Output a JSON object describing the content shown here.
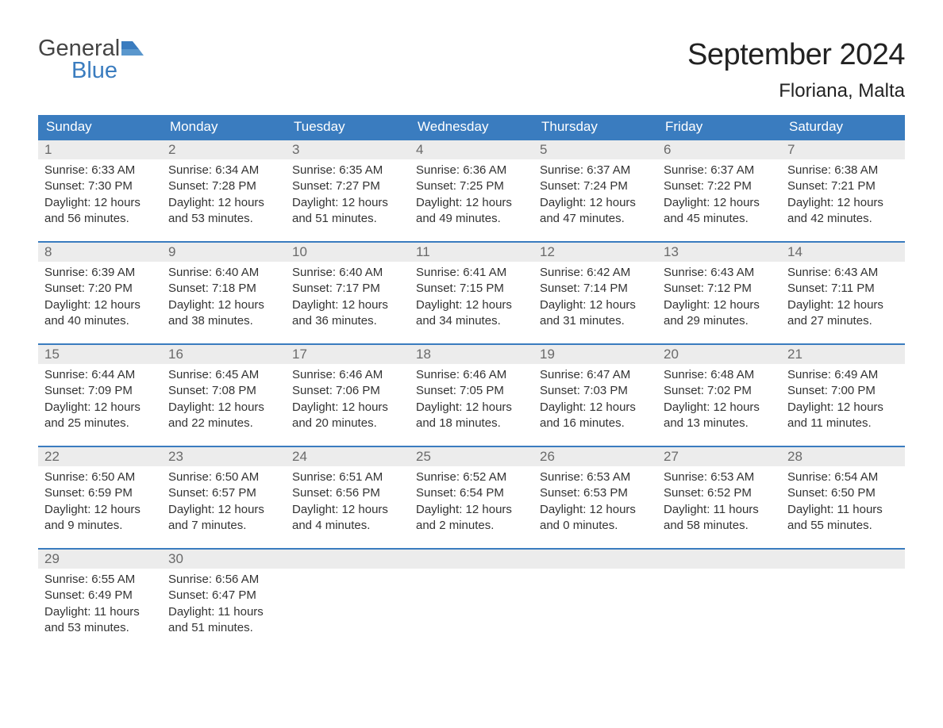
{
  "colors": {
    "header_bar": "#3a7cbf",
    "day_number_bg": "#ececec",
    "day_border": "#3a7cbf",
    "text_primary": "#333333",
    "text_secondary": "#6a6a6a",
    "logo_gray": "#444444",
    "logo_blue": "#3a7cbf",
    "background": "#ffffff"
  },
  "logo": {
    "line1": "General",
    "line2": "Blue"
  },
  "title": "September 2024",
  "location": "Floriana, Malta",
  "weekdays": [
    "Sunday",
    "Monday",
    "Tuesday",
    "Wednesday",
    "Thursday",
    "Friday",
    "Saturday"
  ],
  "weeks": [
    [
      {
        "day": "1",
        "sunrise": "Sunrise: 6:33 AM",
        "sunset": "Sunset: 7:30 PM",
        "daylight1": "Daylight: 12 hours",
        "daylight2": "and 56 minutes."
      },
      {
        "day": "2",
        "sunrise": "Sunrise: 6:34 AM",
        "sunset": "Sunset: 7:28 PM",
        "daylight1": "Daylight: 12 hours",
        "daylight2": "and 53 minutes."
      },
      {
        "day": "3",
        "sunrise": "Sunrise: 6:35 AM",
        "sunset": "Sunset: 7:27 PM",
        "daylight1": "Daylight: 12 hours",
        "daylight2": "and 51 minutes."
      },
      {
        "day": "4",
        "sunrise": "Sunrise: 6:36 AM",
        "sunset": "Sunset: 7:25 PM",
        "daylight1": "Daylight: 12 hours",
        "daylight2": "and 49 minutes."
      },
      {
        "day": "5",
        "sunrise": "Sunrise: 6:37 AM",
        "sunset": "Sunset: 7:24 PM",
        "daylight1": "Daylight: 12 hours",
        "daylight2": "and 47 minutes."
      },
      {
        "day": "6",
        "sunrise": "Sunrise: 6:37 AM",
        "sunset": "Sunset: 7:22 PM",
        "daylight1": "Daylight: 12 hours",
        "daylight2": "and 45 minutes."
      },
      {
        "day": "7",
        "sunrise": "Sunrise: 6:38 AM",
        "sunset": "Sunset: 7:21 PM",
        "daylight1": "Daylight: 12 hours",
        "daylight2": "and 42 minutes."
      }
    ],
    [
      {
        "day": "8",
        "sunrise": "Sunrise: 6:39 AM",
        "sunset": "Sunset: 7:20 PM",
        "daylight1": "Daylight: 12 hours",
        "daylight2": "and 40 minutes."
      },
      {
        "day": "9",
        "sunrise": "Sunrise: 6:40 AM",
        "sunset": "Sunset: 7:18 PM",
        "daylight1": "Daylight: 12 hours",
        "daylight2": "and 38 minutes."
      },
      {
        "day": "10",
        "sunrise": "Sunrise: 6:40 AM",
        "sunset": "Sunset: 7:17 PM",
        "daylight1": "Daylight: 12 hours",
        "daylight2": "and 36 minutes."
      },
      {
        "day": "11",
        "sunrise": "Sunrise: 6:41 AM",
        "sunset": "Sunset: 7:15 PM",
        "daylight1": "Daylight: 12 hours",
        "daylight2": "and 34 minutes."
      },
      {
        "day": "12",
        "sunrise": "Sunrise: 6:42 AM",
        "sunset": "Sunset: 7:14 PM",
        "daylight1": "Daylight: 12 hours",
        "daylight2": "and 31 minutes."
      },
      {
        "day": "13",
        "sunrise": "Sunrise: 6:43 AM",
        "sunset": "Sunset: 7:12 PM",
        "daylight1": "Daylight: 12 hours",
        "daylight2": "and 29 minutes."
      },
      {
        "day": "14",
        "sunrise": "Sunrise: 6:43 AM",
        "sunset": "Sunset: 7:11 PM",
        "daylight1": "Daylight: 12 hours",
        "daylight2": "and 27 minutes."
      }
    ],
    [
      {
        "day": "15",
        "sunrise": "Sunrise: 6:44 AM",
        "sunset": "Sunset: 7:09 PM",
        "daylight1": "Daylight: 12 hours",
        "daylight2": "and 25 minutes."
      },
      {
        "day": "16",
        "sunrise": "Sunrise: 6:45 AM",
        "sunset": "Sunset: 7:08 PM",
        "daylight1": "Daylight: 12 hours",
        "daylight2": "and 22 minutes."
      },
      {
        "day": "17",
        "sunrise": "Sunrise: 6:46 AM",
        "sunset": "Sunset: 7:06 PM",
        "daylight1": "Daylight: 12 hours",
        "daylight2": "and 20 minutes."
      },
      {
        "day": "18",
        "sunrise": "Sunrise: 6:46 AM",
        "sunset": "Sunset: 7:05 PM",
        "daylight1": "Daylight: 12 hours",
        "daylight2": "and 18 minutes."
      },
      {
        "day": "19",
        "sunrise": "Sunrise: 6:47 AM",
        "sunset": "Sunset: 7:03 PM",
        "daylight1": "Daylight: 12 hours",
        "daylight2": "and 16 minutes."
      },
      {
        "day": "20",
        "sunrise": "Sunrise: 6:48 AM",
        "sunset": "Sunset: 7:02 PM",
        "daylight1": "Daylight: 12 hours",
        "daylight2": "and 13 minutes."
      },
      {
        "day": "21",
        "sunrise": "Sunrise: 6:49 AM",
        "sunset": "Sunset: 7:00 PM",
        "daylight1": "Daylight: 12 hours",
        "daylight2": "and 11 minutes."
      }
    ],
    [
      {
        "day": "22",
        "sunrise": "Sunrise: 6:50 AM",
        "sunset": "Sunset: 6:59 PM",
        "daylight1": "Daylight: 12 hours",
        "daylight2": "and 9 minutes."
      },
      {
        "day": "23",
        "sunrise": "Sunrise: 6:50 AM",
        "sunset": "Sunset: 6:57 PM",
        "daylight1": "Daylight: 12 hours",
        "daylight2": "and 7 minutes."
      },
      {
        "day": "24",
        "sunrise": "Sunrise: 6:51 AM",
        "sunset": "Sunset: 6:56 PM",
        "daylight1": "Daylight: 12 hours",
        "daylight2": "and 4 minutes."
      },
      {
        "day": "25",
        "sunrise": "Sunrise: 6:52 AM",
        "sunset": "Sunset: 6:54 PM",
        "daylight1": "Daylight: 12 hours",
        "daylight2": "and 2 minutes."
      },
      {
        "day": "26",
        "sunrise": "Sunrise: 6:53 AM",
        "sunset": "Sunset: 6:53 PM",
        "daylight1": "Daylight: 12 hours",
        "daylight2": "and 0 minutes."
      },
      {
        "day": "27",
        "sunrise": "Sunrise: 6:53 AM",
        "sunset": "Sunset: 6:52 PM",
        "daylight1": "Daylight: 11 hours",
        "daylight2": "and 58 minutes."
      },
      {
        "day": "28",
        "sunrise": "Sunrise: 6:54 AM",
        "sunset": "Sunset: 6:50 PM",
        "daylight1": "Daylight: 11 hours",
        "daylight2": "and 55 minutes."
      }
    ],
    [
      {
        "day": "29",
        "sunrise": "Sunrise: 6:55 AM",
        "sunset": "Sunset: 6:49 PM",
        "daylight1": "Daylight: 11 hours",
        "daylight2": "and 53 minutes."
      },
      {
        "day": "30",
        "sunrise": "Sunrise: 6:56 AM",
        "sunset": "Sunset: 6:47 PM",
        "daylight1": "Daylight: 11 hours",
        "daylight2": "and 51 minutes."
      },
      null,
      null,
      null,
      null,
      null
    ]
  ]
}
